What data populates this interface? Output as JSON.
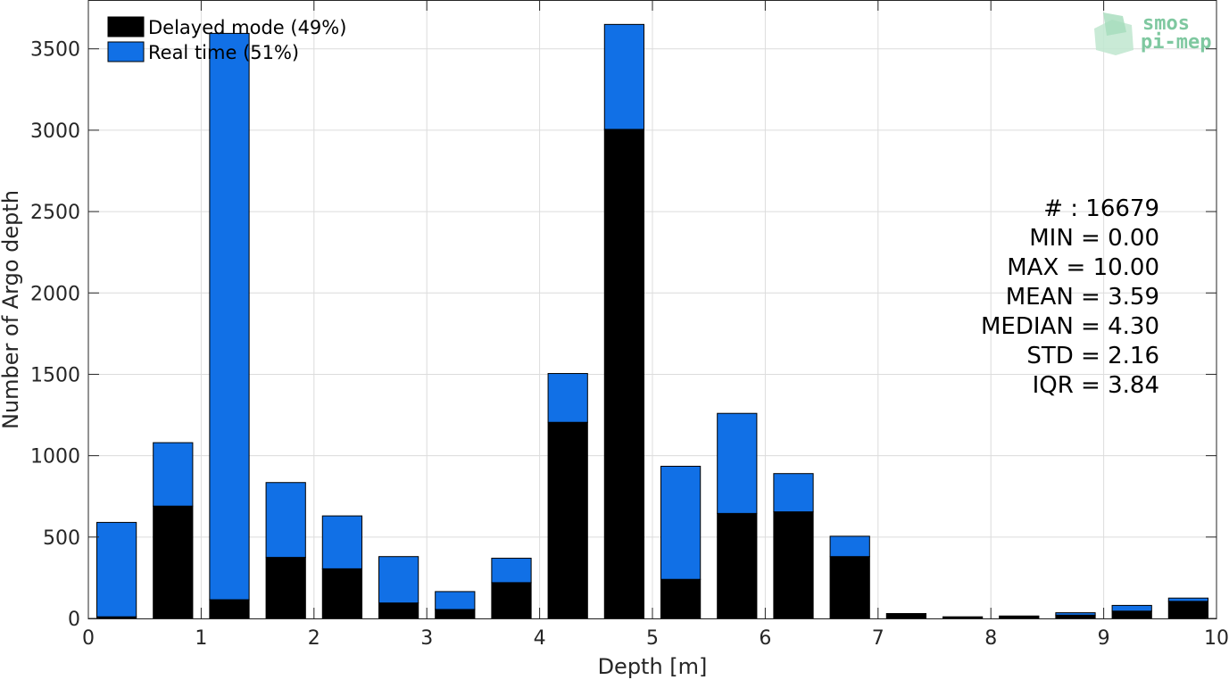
{
  "chart_data": {
    "type": "bar",
    "stacked": true,
    "bin_width": 0.5,
    "x_centers": [
      0.25,
      0.75,
      1.25,
      1.75,
      2.25,
      2.75,
      3.25,
      3.75,
      4.25,
      4.75,
      5.25,
      5.75,
      6.25,
      6.75,
      7.25,
      7.75,
      8.25,
      8.75,
      9.25,
      9.75
    ],
    "series": [
      {
        "name": "Delayed mode (49%)",
        "color": "#000000",
        "values": [
          10,
          690,
          115,
          375,
          305,
          95,
          55,
          220,
          1205,
          3005,
          240,
          645,
          655,
          380,
          30,
          10,
          15,
          20,
          45,
          105
        ]
      },
      {
        "name": "Real time (51%)",
        "color": "#1170e6",
        "values": [
          580,
          390,
          3480,
          460,
          325,
          285,
          110,
          150,
          300,
          645,
          695,
          615,
          235,
          125,
          0,
          0,
          0,
          15,
          35,
          20
        ]
      }
    ],
    "xlabel": "Depth [m]",
    "ylabel": "Number of Argo depth",
    "xlim": [
      0,
      10
    ],
    "ylim": [
      0,
      3800
    ],
    "xticks": [
      0,
      1,
      2,
      3,
      4,
      5,
      6,
      7,
      8,
      9,
      10
    ],
    "yticks": [
      0,
      500,
      1000,
      1500,
      2000,
      2500,
      3000,
      3500
    ],
    "grid": true,
    "legend_position": "top-left"
  },
  "stats": [
    "# : 16679",
    "MIN = 0.00",
    "MAX =  10.00",
    "MEAN = 3.59",
    "MEDIAN = 4.30",
    "STD = 2.16",
    "IQR = 3.84"
  ],
  "logo": {
    "line1": "smos",
    "line2": "pi-mep"
  }
}
